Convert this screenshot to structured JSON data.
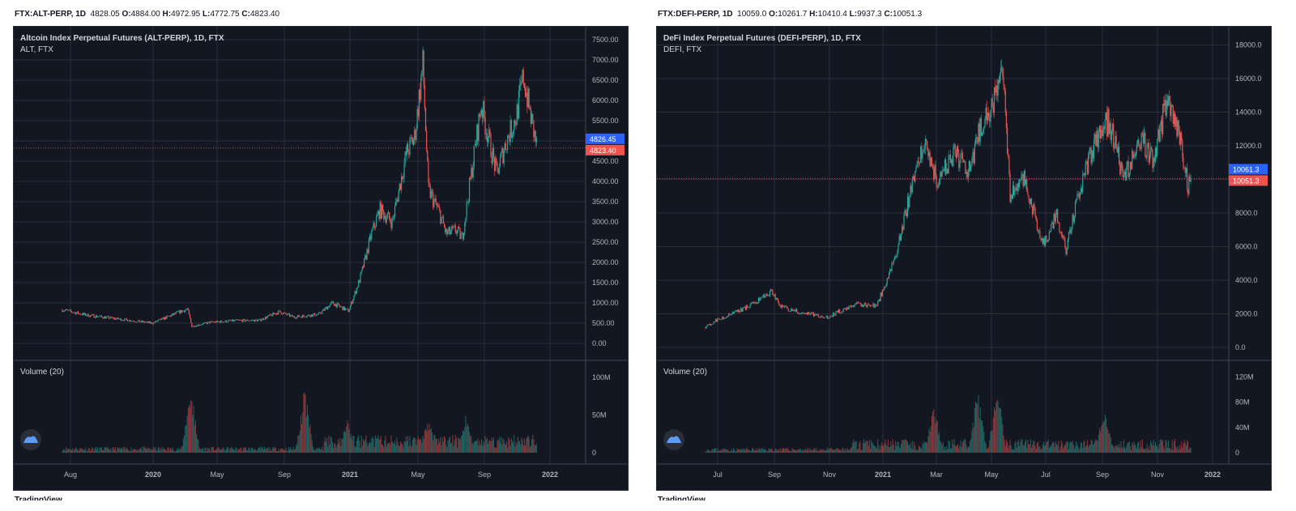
{
  "charts": [
    {
      "header": {
        "symbol": "FTX:ALT-PERP, 1D",
        "o": "4828.05",
        "open": "4884.00",
        "high": "4972.95",
        "low": "4772.75",
        "close": "4823.40"
      },
      "title": "Altcoin Index Perpetual Futures (ALT-PERP), 1D, FTX",
      "subtitle": "ALT, FTX",
      "volume_label": "Volume (20)",
      "price_ticks": [
        "7500.00",
        "7000.00",
        "6500.00",
        "6000.00",
        "5500.00",
        "5000.00",
        "4500.00",
        "4000.00",
        "3500.00",
        "3000.00",
        "2500.00",
        "2000.00",
        "1500.00",
        "1000.00",
        "500.00",
        "0.00"
      ],
      "price_tick_values": [
        7500,
        7000,
        6500,
        6000,
        5500,
        5000,
        4500,
        4000,
        3500,
        3000,
        2500,
        2000,
        1500,
        1000,
        500,
        0
      ],
      "volume_ticks": [
        "100M",
        "50M",
        "0"
      ],
      "volume_tick_values": [
        100,
        50,
        0
      ],
      "time_ticks": [
        "Aug",
        "2020",
        "May",
        "Sep",
        "2021",
        "May",
        "Sep",
        "2022"
      ],
      "last_price_label": "4826.45",
      "close_label": "4823.40",
      "footer": "TradingView"
    },
    {
      "header": {
        "symbol": "FTX:DEFI-PERP, 1D",
        "o": "10059.0",
        "open": "10261.7",
        "high": "10410.4",
        "low": "9937.3",
        "close": "10051.3"
      },
      "title": "DeFi Index Perpetual Futures (DEFI-PERP), 1D, FTX",
      "subtitle": "DEFI, FTX",
      "volume_label": "Volume (20)",
      "price_ticks": [
        "18000.0",
        "16000.0",
        "14000.0",
        "12000.0",
        "10000.0",
        "8000.0",
        "6000.0",
        "4000.0",
        "2000.0",
        "0.0"
      ],
      "price_tick_values": [
        18000,
        16000,
        14000,
        12000,
        10000,
        8000,
        6000,
        4000,
        2000,
        0
      ],
      "volume_ticks": [
        "120M",
        "80M",
        "40M",
        "0"
      ],
      "volume_tick_values": [
        120,
        80,
        40,
        0
      ],
      "time_ticks": [
        "Jul",
        "Sep",
        "Nov",
        "2021",
        "Mar",
        "May",
        "Jul",
        "Sep",
        "Nov",
        "2022"
      ],
      "last_price_label": "10061.3",
      "close_label": "10051.3",
      "footer": "TradingView"
    }
  ],
  "colors": {
    "background": "#131722",
    "grid": "#2a2e39",
    "up": "#26a69a",
    "down": "#ef5350",
    "last_price": "#2962ff",
    "axis_text": "#b2b5be"
  },
  "chart_data": [
    {
      "type": "candlestick",
      "title": "Altcoin Index Perpetual Futures (ALT-PERP), 1D, FTX",
      "ylim": [
        0,
        7500
      ],
      "x": [
        "2019-07-20",
        "2019-09-01",
        "2019-11-01",
        "2020-01-01",
        "2020-02-15",
        "2020-03-05",
        "2020-03-13",
        "2020-04-15",
        "2020-06-01",
        "2020-07-15",
        "2020-08-20",
        "2020-09-15",
        "2020-11-01",
        "2020-11-25",
        "2020-12-25",
        "2021-01-15",
        "2021-02-05",
        "2021-02-20",
        "2021-03-15",
        "2021-04-10",
        "2021-04-25",
        "2021-05-10",
        "2021-05-20",
        "2021-06-10",
        "2021-06-22",
        "2021-07-10",
        "2021-07-21",
        "2021-08-10",
        "2021-08-25",
        "2021-09-05",
        "2021-09-22",
        "2021-10-10",
        "2021-10-28",
        "2021-11-10",
        "2021-11-22",
        "2021-12-05"
      ],
      "close": [
        830,
        700,
        600,
        500,
        750,
        850,
        420,
        520,
        560,
        570,
        780,
        650,
        720,
        1000,
        800,
        1600,
        2700,
        3300,
        3000,
        4700,
        5100,
        6900,
        3800,
        3200,
        2700,
        2800,
        2600,
        4500,
        5900,
        5200,
        4200,
        5000,
        5600,
        6600,
        5700,
        4823
      ],
      "volume_max": "100M"
    },
    {
      "type": "candlestick",
      "title": "DeFi Index Perpetual Futures (DEFI-PERP), 1D, FTX",
      "ylim": [
        0,
        18000
      ],
      "x": [
        "2020-06-20",
        "2020-07-01",
        "2020-08-01",
        "2020-09-01",
        "2020-09-10",
        "2020-10-01",
        "2020-11-01",
        "2020-12-01",
        "2020-12-25",
        "2021-01-15",
        "2021-02-05",
        "2021-02-15",
        "2021-03-01",
        "2021-03-20",
        "2021-04-05",
        "2021-04-20",
        "2021-05-05",
        "2021-05-12",
        "2021-05-20",
        "2021-06-05",
        "2021-06-25",
        "2021-07-10",
        "2021-07-20",
        "2021-08-10",
        "2021-08-25",
        "2021-09-05",
        "2021-09-22",
        "2021-10-10",
        "2021-10-25",
        "2021-11-08",
        "2021-11-22",
        "2021-12-01",
        "2021-12-05"
      ],
      "close": [
        1200,
        1600,
        2300,
        3300,
        2400,
        2100,
        1800,
        2600,
        2500,
        5500,
        10500,
        12000,
        10000,
        11500,
        10500,
        13500,
        15000,
        16500,
        9000,
        10000,
        6000,
        8000,
        5800,
        10500,
        12500,
        13500,
        10000,
        12500,
        11000,
        15000,
        12500,
        9500,
        10051
      ],
      "volume_max": "120M"
    }
  ]
}
